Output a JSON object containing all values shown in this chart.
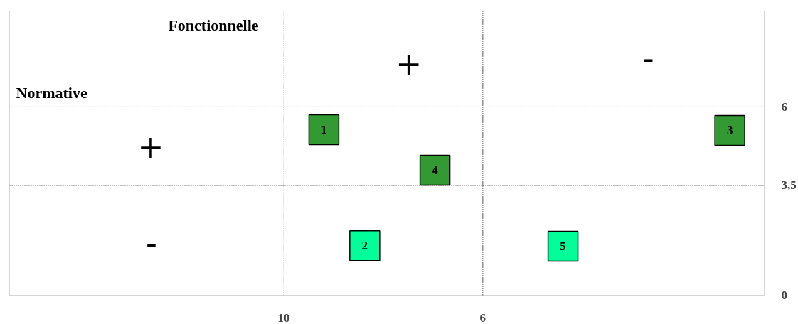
{
  "chart_data": {
    "type": "scatter",
    "marker": "square",
    "x": [
      9.19,
      8.37,
      1.04,
      6.96,
      4.39
    ],
    "values": [
      5.27,
      1.58,
      5.25,
      3.98,
      1.56
    ],
    "colors": [
      "#339933",
      "#00ff99",
      "#339933",
      "#339933",
      "#00ff99"
    ],
    "xlim": [
      15.5,
      0.35
    ],
    "ylim": [
      0,
      9.05
    ],
    "xticks": [
      10,
      6
    ],
    "yticks": [
      0,
      {
        "value": 3.5,
        "label": "3,5"
      },
      6
    ],
    "grid": false,
    "ref_lines": [
      {
        "axis": "x",
        "value": 10,
        "color": "#c0c0c0",
        "line_style": "dotted"
      },
      {
        "axis": "x",
        "value": 6,
        "color": "#000000",
        "line_style": "dotted"
      },
      {
        "axis": "y",
        "value": 6,
        "color": "#c0c0c0",
        "line_style": "dotted"
      },
      {
        "axis": "y",
        "value": 3.5,
        "color": "#000000",
        "line_style": "dotted"
      }
    ],
    "annotations": [
      {
        "text": "1",
        "x": 9.19,
        "y": 5.27
      },
      {
        "text": "2",
        "x": 8.37,
        "y": 1.58
      },
      {
        "text": "3",
        "x": 1.04,
        "y": 5.25
      },
      {
        "text": "4",
        "x": 6.96,
        "y": 3.98
      },
      {
        "text": "5",
        "x": 4.39,
        "y": 1.56
      },
      "Fonctionnelle",
      "Normative",
      "+",
      "-",
      "+",
      "-"
    ]
  }
}
